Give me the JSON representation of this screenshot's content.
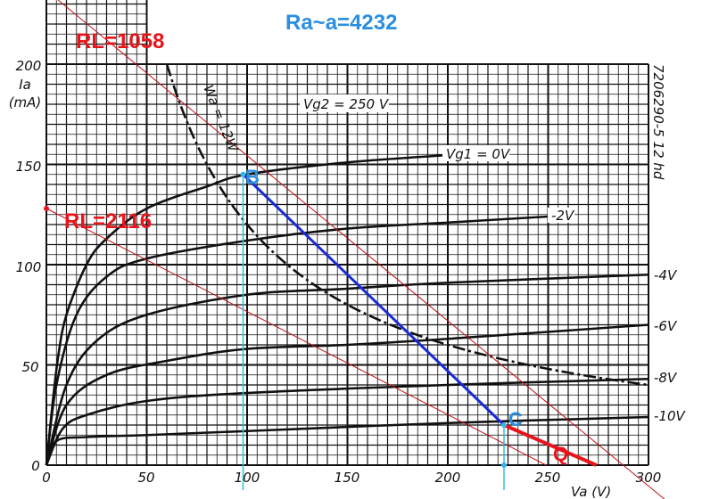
{
  "chart_data": {
    "type": "line",
    "xlabel": "Va (V)",
    "ylabel": "Ia",
    "yunit": "(mA)",
    "xlim": [
      0,
      300
    ],
    "ylim": [
      0,
      200
    ],
    "xticks": [
      0,
      50,
      100,
      150,
      200,
      250,
      300
    ],
    "yticks": [
      0,
      50,
      100,
      150,
      200
    ],
    "grid": true,
    "condition_label": "Vg2 = 250 V",
    "code_label": "7206290-5 12 hd",
    "series": [
      {
        "name": "Vg1 = 0V",
        "label_pos": "inline",
        "points": [
          [
            0,
            0
          ],
          [
            3,
            30
          ],
          [
            6,
            55
          ],
          [
            10,
            75
          ],
          [
            20,
            100
          ],
          [
            30,
            113
          ],
          [
            50,
            128
          ],
          [
            80,
            139
          ],
          [
            100,
            145
          ],
          [
            150,
            151
          ],
          [
            205,
            155
          ]
        ]
      },
      {
        "name": "-2V",
        "label_pos": "inline",
        "points": [
          [
            0,
            0
          ],
          [
            5,
            40
          ],
          [
            15,
            75
          ],
          [
            30,
            94
          ],
          [
            50,
            103
          ],
          [
            100,
            112
          ],
          [
            150,
            118
          ],
          [
            200,
            121
          ],
          [
            250,
            124
          ]
        ]
      },
      {
        "name": "-4V",
        "points": [
          [
            0,
            0
          ],
          [
            10,
            40
          ],
          [
            25,
            62
          ],
          [
            50,
            75
          ],
          [
            100,
            85
          ],
          [
            150,
            88
          ],
          [
            200,
            91
          ],
          [
            300,
            95
          ]
        ]
      },
      {
        "name": "-6V",
        "points": [
          [
            0,
            0
          ],
          [
            10,
            30
          ],
          [
            30,
            45
          ],
          [
            60,
            52
          ],
          [
            100,
            58
          ],
          [
            150,
            60
          ],
          [
            200,
            63
          ],
          [
            300,
            70
          ]
        ]
      },
      {
        "name": "-8V",
        "points": [
          [
            0,
            0
          ],
          [
            8,
            18
          ],
          [
            20,
            25
          ],
          [
            50,
            32
          ],
          [
            100,
            36
          ],
          [
            200,
            40
          ],
          [
            300,
            43
          ]
        ]
      },
      {
        "name": "-10V",
        "points": [
          [
            0,
            0
          ],
          [
            5,
            12
          ],
          [
            20,
            14
          ],
          [
            50,
            15
          ],
          [
            100,
            17
          ],
          [
            200,
            21
          ],
          [
            300,
            24
          ]
        ]
      }
    ],
    "power_curve": {
      "name": "Wa = 12W",
      "watts": 12,
      "vrange": [
        60,
        300
      ]
    },
    "annotations": {
      "title": "Ra~a=4232",
      "rl1": {
        "label": "RL=1058",
        "from": [
          5.8,
          232
        ],
        "to": [
          308,
          -17
        ]
      },
      "rl2": {
        "label": "RL=2116",
        "from": [
          0,
          128
        ],
        "to": [
          249,
          0
        ]
      },
      "load_line": {
        "from": [
          98,
          145
        ],
        "to": [
          228,
          20
        ]
      },
      "q_line": {
        "from": [
          228,
          20
        ],
        "to": [
          274,
          0
        ]
      },
      "points": {
        "B": [
          98,
          145
        ],
        "C": [
          228,
          20
        ],
        "Q": [
          255,
          7
        ]
      },
      "colors": {
        "red": "#e8141b",
        "blue": "#1a2bd6",
        "cyan": "#35b8e8",
        "label_blue": "#2a8fe0"
      }
    }
  }
}
